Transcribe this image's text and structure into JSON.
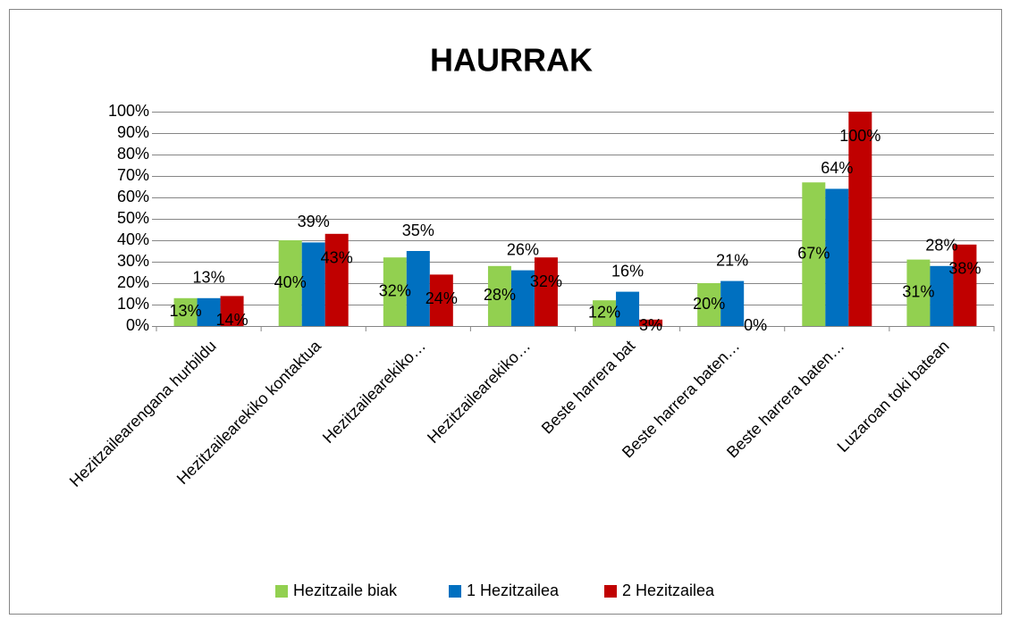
{
  "chart_data": {
    "type": "bar",
    "title": "HAURRAK",
    "categories": [
      "Hezitzailearengana hurbildu",
      "Hezitzailearekiko kontaktua",
      "Hezitzailearekiko…",
      "Hezitzailearekiko…",
      "Beste harrera bat",
      "Beste harrera baten…",
      "Beste harrera baten…",
      "Luzaroan toki batean"
    ],
    "series": [
      {
        "name": "Hezitzaile biak",
        "color": "#92d050",
        "values": [
          13,
          40,
          32,
          28,
          12,
          20,
          67,
          31
        ],
        "value_labels": [
          "13%",
          "40%",
          "32%",
          "28%",
          "12%",
          "20%",
          "67%",
          "31%"
        ]
      },
      {
        "name": "1 Hezitzailea",
        "color": "#0070c0",
        "values": [
          13,
          39,
          35,
          26,
          16,
          21,
          64,
          28
        ],
        "value_labels": [
          "13%",
          "39%",
          "35%",
          "26%",
          "16%",
          "21%",
          "64%",
          "28%"
        ]
      },
      {
        "name": "2 Hezitzailea",
        "color": "#c00000",
        "values": [
          14,
          43,
          24,
          32,
          3,
          0,
          100,
          38
        ],
        "value_labels": [
          "14%",
          "43%",
          "24%",
          "32%",
          "3%",
          "0%",
          "100%",
          "38%"
        ]
      }
    ],
    "ylim": [
      0,
      100
    ],
    "yticks": [
      {
        "value": 0,
        "label": "0%"
      },
      {
        "value": 10,
        "label": "10%"
      },
      {
        "value": 20,
        "label": "20%"
      },
      {
        "value": 30,
        "label": "30%"
      },
      {
        "value": 40,
        "label": "40%"
      },
      {
        "value": 50,
        "label": "50%"
      },
      {
        "value": 60,
        "label": "60%"
      },
      {
        "value": 70,
        "label": "70%"
      },
      {
        "value": 80,
        "label": "80%"
      },
      {
        "value": 90,
        "label": "90%"
      },
      {
        "value": 100,
        "label": "100%"
      }
    ],
    "grid": true,
    "legend": "bottom"
  }
}
